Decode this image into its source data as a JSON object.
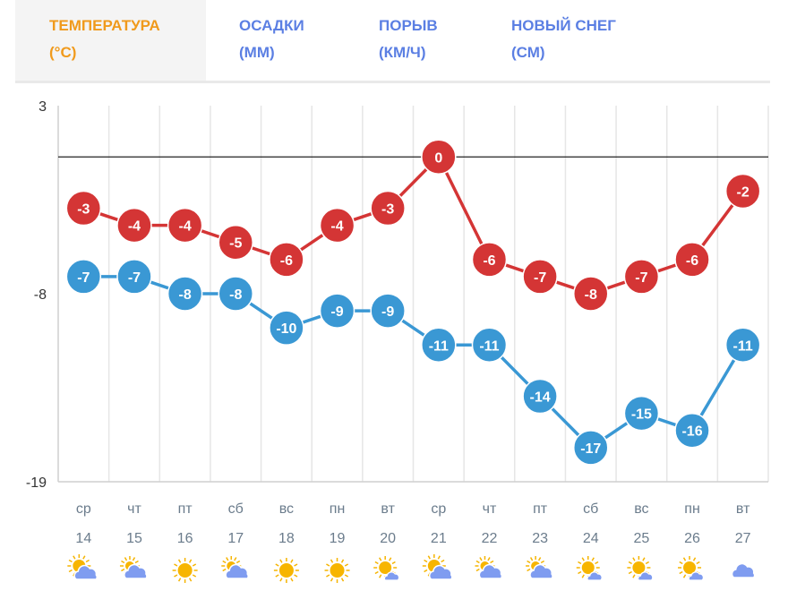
{
  "tabs": [
    {
      "line1": "ТЕМПЕРАТУРА",
      "line2": "(°C)",
      "active": true
    },
    {
      "line1": "ОСАДКИ",
      "line2": "(ММ)"
    },
    {
      "line1": "ПОРЫВ",
      "line2": "(КМ/Ч)"
    },
    {
      "line1": "НОВЫЙ СНЕГ",
      "line2": "(СМ)"
    }
  ],
  "chart_data": {
    "type": "line",
    "ylim": [
      -19,
      3
    ],
    "yticks": [
      "3",
      "-8",
      "-19"
    ],
    "reference_line": 0,
    "days": [
      "ср",
      "чт",
      "пт",
      "сб",
      "вс",
      "пн",
      "вт",
      "ср",
      "чт",
      "пт",
      "сб",
      "вс",
      "пн",
      "вт"
    ],
    "dates": [
      "14",
      "15",
      "16",
      "17",
      "18",
      "19",
      "20",
      "21",
      "22",
      "23",
      "24",
      "25",
      "26",
      "27"
    ],
    "weather_icons": [
      "sun-cloud",
      "cloud-sun",
      "sun",
      "cloud-sun",
      "sun",
      "sun",
      "sun-small-cloud",
      "sun-cloud",
      "cloud-sun",
      "cloud-sun",
      "sun-small-cloud",
      "sun-small-cloud",
      "sun-small-cloud",
      "cloud"
    ],
    "series": [
      {
        "name": "max",
        "color": "#d43535",
        "values": [
          -3,
          -4,
          -4,
          -5,
          -6,
          -4,
          -3,
          0,
          -6,
          -7,
          -8,
          -7,
          -6,
          -2
        ]
      },
      {
        "name": "min",
        "color": "#3a98d4",
        "values": [
          -7,
          -7,
          -8,
          -8,
          -10,
          -9,
          -9,
          -11,
          -11,
          -14,
          -17,
          -15,
          -16,
          -11
        ]
      }
    ]
  }
}
